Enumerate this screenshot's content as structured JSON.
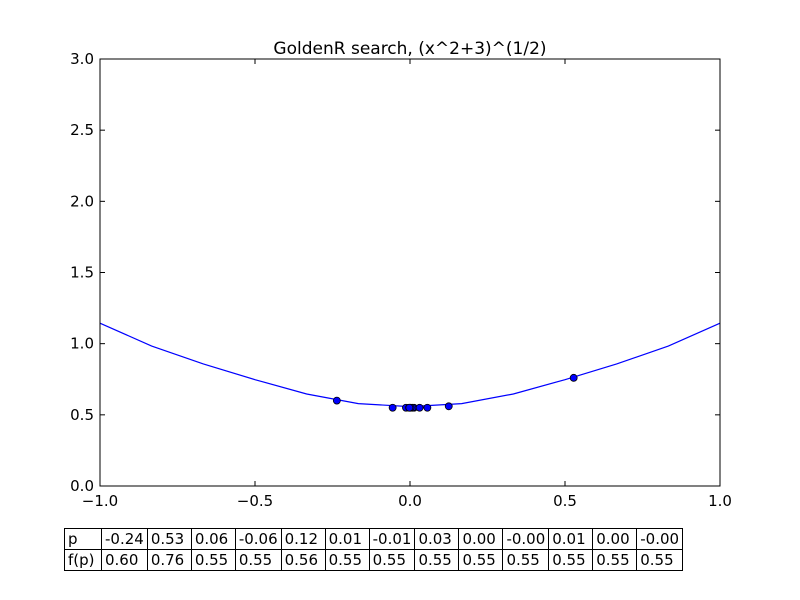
{
  "chart_data": {
    "type": "line",
    "title": "GoldenR search, (x^2+3)^(1/2)",
    "xlabel": "",
    "ylabel": "",
    "xlim": [
      -1.0,
      1.0
    ],
    "ylim": [
      0.0,
      3.0
    ],
    "x_ticks": [
      "−1.0",
      "−0.5",
      "0.0",
      "0.5",
      "1.0"
    ],
    "x_tick_values": [
      -1.0,
      -0.5,
      0.0,
      0.5,
      1.0
    ],
    "y_ticks": [
      "0.0",
      "0.5",
      "1.0",
      "1.5",
      "2.0",
      "2.5",
      "3.0"
    ],
    "y_tick_values": [
      0.0,
      0.5,
      1.0,
      1.5,
      2.0,
      2.5,
      3.0
    ],
    "line_color": "#0000ff",
    "marker_color": "#0000ff",
    "curve": {
      "x": [
        -1.0,
        -0.8333,
        -0.6667,
        -0.5,
        -0.3333,
        -0.1667,
        0.0,
        0.1667,
        0.3333,
        0.5,
        0.6667,
        0.8333,
        1.0
      ],
      "y": [
        1.1441,
        0.9834,
        0.8575,
        0.7472,
        0.6465,
        0.5787,
        0.5574,
        0.5787,
        0.6465,
        0.7472,
        0.8575,
        0.9834,
        1.1441
      ]
    },
    "points": {
      "x": [
        -0.236,
        0.528,
        0.056,
        -0.056,
        0.125,
        0.013,
        -0.013,
        0.031,
        0.003,
        -0.003,
        0.008,
        0.002,
        -0.002
      ],
      "y": [
        0.6,
        0.76,
        0.55,
        0.55,
        0.56,
        0.55,
        0.55,
        0.55,
        0.55,
        0.55,
        0.55,
        0.55,
        0.55
      ]
    },
    "table": {
      "row_labels": [
        "p",
        "f(p)"
      ],
      "p": [
        "-0.24",
        "0.53",
        "0.06",
        "-0.06",
        "0.12",
        "0.01",
        "-0.01",
        "0.03",
        "0.00",
        "-0.00",
        "0.01",
        "0.00",
        "-0.00"
      ],
      "fp": [
        "0.60",
        "0.76",
        "0.55",
        "0.55",
        "0.56",
        "0.55",
        "0.55",
        "0.55",
        "0.55",
        "0.55",
        "0.55",
        "0.55",
        "0.55"
      ]
    }
  }
}
